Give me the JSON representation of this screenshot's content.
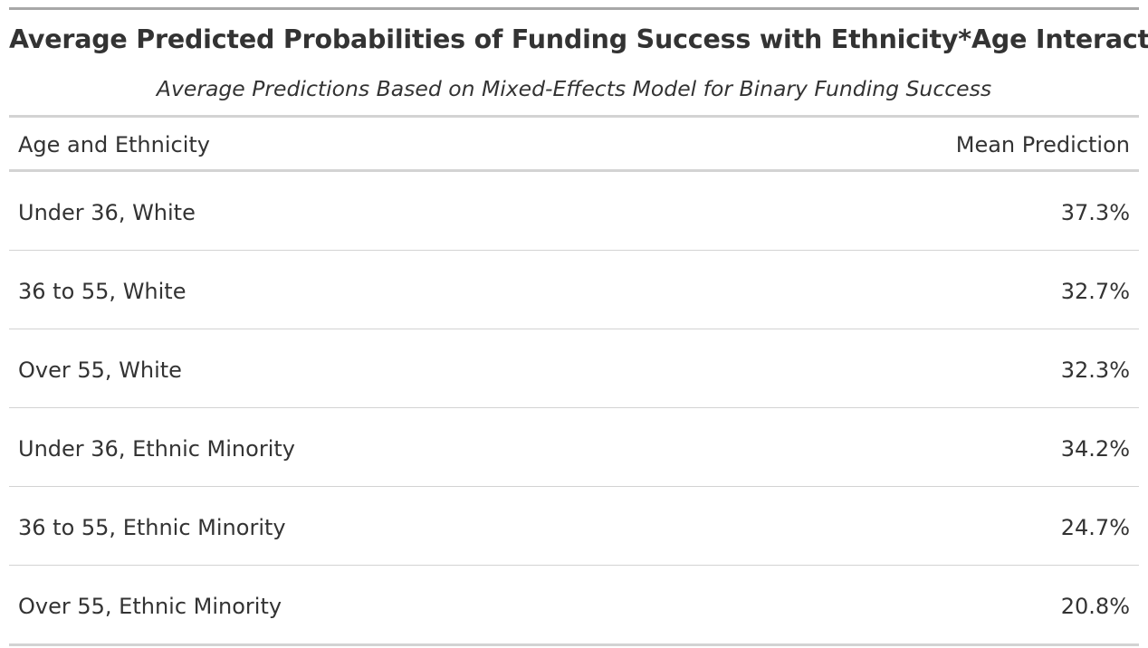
{
  "table": {
    "title": "Average Predicted Probabilities of Funding Success with Ethnicity*Age Interaction",
    "subtitle": "Average Predictions Based on Mixed-Effects Model for Binary Funding Success",
    "columns": [
      "Age and Ethnicity",
      "Mean Prediction"
    ],
    "rows": [
      {
        "group": "Under 36, White",
        "mean_prediction": "37.3%"
      },
      {
        "group": "36 to 55, White",
        "mean_prediction": "32.7%"
      },
      {
        "group": "Over 55, White",
        "mean_prediction": "32.3%"
      },
      {
        "group": "Under 36, Ethnic Minority",
        "mean_prediction": "34.2%"
      },
      {
        "group": "36 to 55, Ethnic Minority",
        "mean_prediction": "24.7%"
      },
      {
        "group": "Over 55, Ethnic Minority",
        "mean_prediction": "20.8%"
      }
    ]
  }
}
